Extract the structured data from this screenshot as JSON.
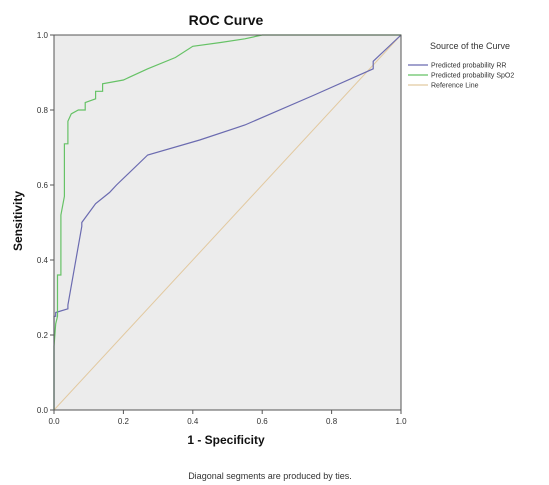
{
  "chart_data": {
    "type": "line",
    "title": "ROC Curve",
    "xlabel": "1 - Specificity",
    "ylabel": "Sensitivity",
    "xlim": [
      0,
      1
    ],
    "ylim": [
      0,
      1
    ],
    "x_ticks": [
      "0.0",
      "0.2",
      "0.4",
      "0.6",
      "0.8",
      "1.0"
    ],
    "y_ticks": [
      "0.0",
      "0.2",
      "0.4",
      "0.6",
      "0.8",
      "1.0"
    ],
    "grid": false,
    "background": "#ececec",
    "legend": {
      "title": "Source of the Curve",
      "placement": "right"
    },
    "series": [
      {
        "name": "Predicted probability RR",
        "color": "#6b6bb0",
        "x": [
          0,
          0,
          0.005,
          0.005,
          0.04,
          0.04,
          0.08,
          0.08,
          0.12,
          0.16,
          0.18,
          0.27,
          0.42,
          0.55,
          0.75,
          0.92,
          0.92,
          1.0
        ],
        "y": [
          0,
          0.25,
          0.25,
          0.26,
          0.27,
          0.28,
          0.49,
          0.5,
          0.55,
          0.58,
          0.6,
          0.68,
          0.72,
          0.76,
          0.84,
          0.91,
          0.93,
          1.0
        ]
      },
      {
        "name": "Predicted probability SpO2",
        "color": "#66c266",
        "x": [
          0,
          0,
          0.005,
          0.01,
          0.01,
          0.02,
          0.02,
          0.03,
          0.03,
          0.04,
          0.04,
          0.05,
          0.07,
          0.09,
          0.09,
          0.12,
          0.12,
          0.14,
          0.14,
          0.2,
          0.27,
          0.35,
          0.4,
          0.48,
          0.55,
          0.6,
          1.0
        ],
        "y": [
          0,
          0.17,
          0.23,
          0.25,
          0.36,
          0.36,
          0.52,
          0.57,
          0.71,
          0.71,
          0.77,
          0.79,
          0.8,
          0.8,
          0.82,
          0.83,
          0.85,
          0.85,
          0.87,
          0.88,
          0.91,
          0.94,
          0.97,
          0.98,
          0.99,
          1.0,
          1.0
        ]
      },
      {
        "name": "Reference Line",
        "color": "#e2c9a0",
        "x": [
          0,
          1
        ],
        "y": [
          0,
          1
        ]
      }
    ],
    "footnote": "Diagonal segments are produced by ties."
  }
}
